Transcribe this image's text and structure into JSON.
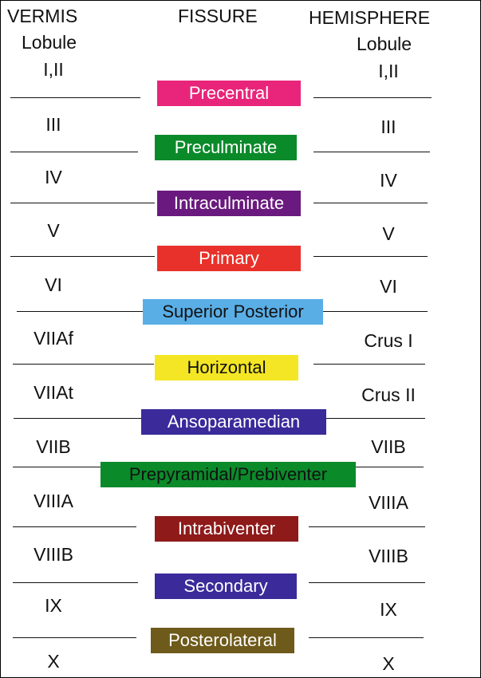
{
  "headers": {
    "vermis": "VERMIS",
    "vermis_sub": "Lobule",
    "fissure": "FISSURE",
    "hemisphere": "HEMISPHERE",
    "hemisphere_sub": "Lobule"
  },
  "vermis_lobules": [
    "I,II",
    "III",
    "IV",
    "V",
    "VI",
    "VIIAf",
    "VIIAt",
    "VIIB",
    "VIIIA",
    "VIIIB",
    "IX",
    "X"
  ],
  "hemisphere_lobules": [
    "I,II",
    "III",
    "IV",
    "V",
    "VI",
    "Crus I",
    "Crus II",
    "VIIB",
    "VIIIA",
    "VIIIB",
    "IX",
    "X"
  ],
  "fissures": [
    {
      "label": "Precentral",
      "color": "#e8257a",
      "text_color": "#ffffff"
    },
    {
      "label": "Preculminate",
      "color": "#0b8a2a",
      "text_color": "#ffffff"
    },
    {
      "label": "Intraculminate",
      "color": "#6a1a7e",
      "text_color": "#ffffff"
    },
    {
      "label": "Primary",
      "color": "#e8312a",
      "text_color": "#ffffff"
    },
    {
      "label": "Superior Posterior",
      "color": "#5aaee6",
      "text_color": "#111111"
    },
    {
      "label": "Horizontal",
      "color": "#f4e624",
      "text_color": "#111111"
    },
    {
      "label": "Ansoparamedian",
      "color": "#3a2a9a",
      "text_color": "#ffffff"
    },
    {
      "label": "Prepyramidal/Prebiventer",
      "color": "#0b8a2a",
      "text_color": "#111111"
    },
    {
      "label": "Intrabiventer",
      "color": "#8e1a1a",
      "text_color": "#ffffff"
    },
    {
      "label": "Secondary",
      "color": "#3a2a9a",
      "text_color": "#ffffff"
    },
    {
      "label": "Posterolateral",
      "color": "#6e5a1a",
      "text_color": "#ffffff"
    }
  ]
}
